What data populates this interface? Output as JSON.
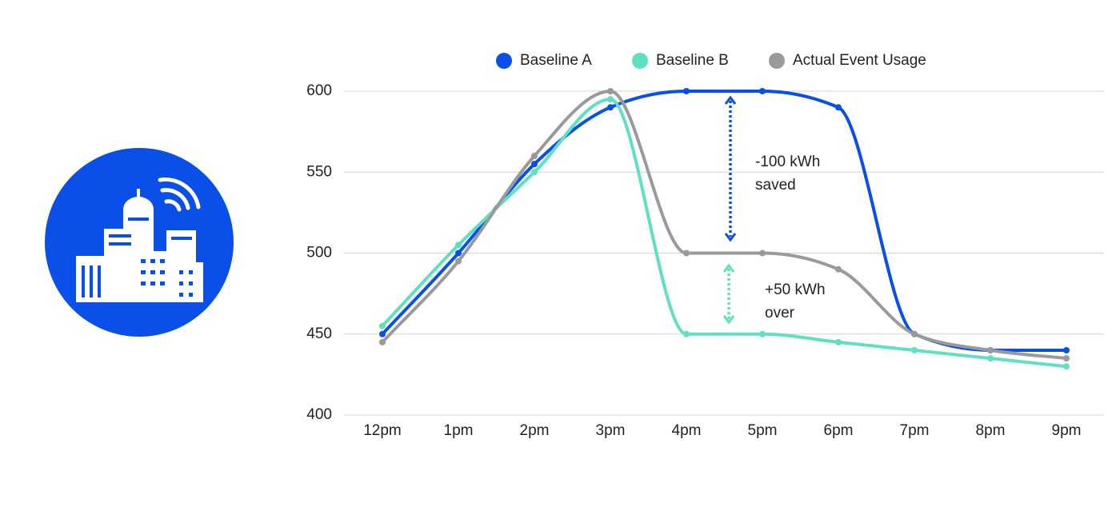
{
  "chart_data": {
    "type": "line",
    "categories": [
      "12pm",
      "1pm",
      "2pm",
      "3pm",
      "4pm",
      "5pm",
      "6pm",
      "7pm",
      "8pm",
      "9pm"
    ],
    "series": [
      {
        "name": "Baseline A",
        "color": "#0a50e8",
        "values": [
          450,
          500,
          555,
          590,
          600,
          600,
          590,
          450,
          440,
          440
        ]
      },
      {
        "name": "Baseline B",
        "color": "#5ee0c1",
        "values": [
          455,
          505,
          550,
          595,
          450,
          450,
          445,
          440,
          435,
          430
        ]
      },
      {
        "name": "Actual Event Usage",
        "color": "#9a9a9a",
        "values": [
          445,
          495,
          560,
          600,
          500,
          500,
          490,
          450,
          440,
          435
        ]
      }
    ],
    "ylim": [
      400,
      600
    ],
    "yticks": [
      400,
      450,
      500,
      550,
      600
    ],
    "grid": true,
    "legend": "top",
    "annotations": [
      {
        "lines": [
          "-100 kWh",
          "saved"
        ],
        "color": "#0a50e8"
      },
      {
        "lines": [
          "+50 kWh",
          "over"
        ],
        "color": "#5ee0c1"
      }
    ]
  }
}
